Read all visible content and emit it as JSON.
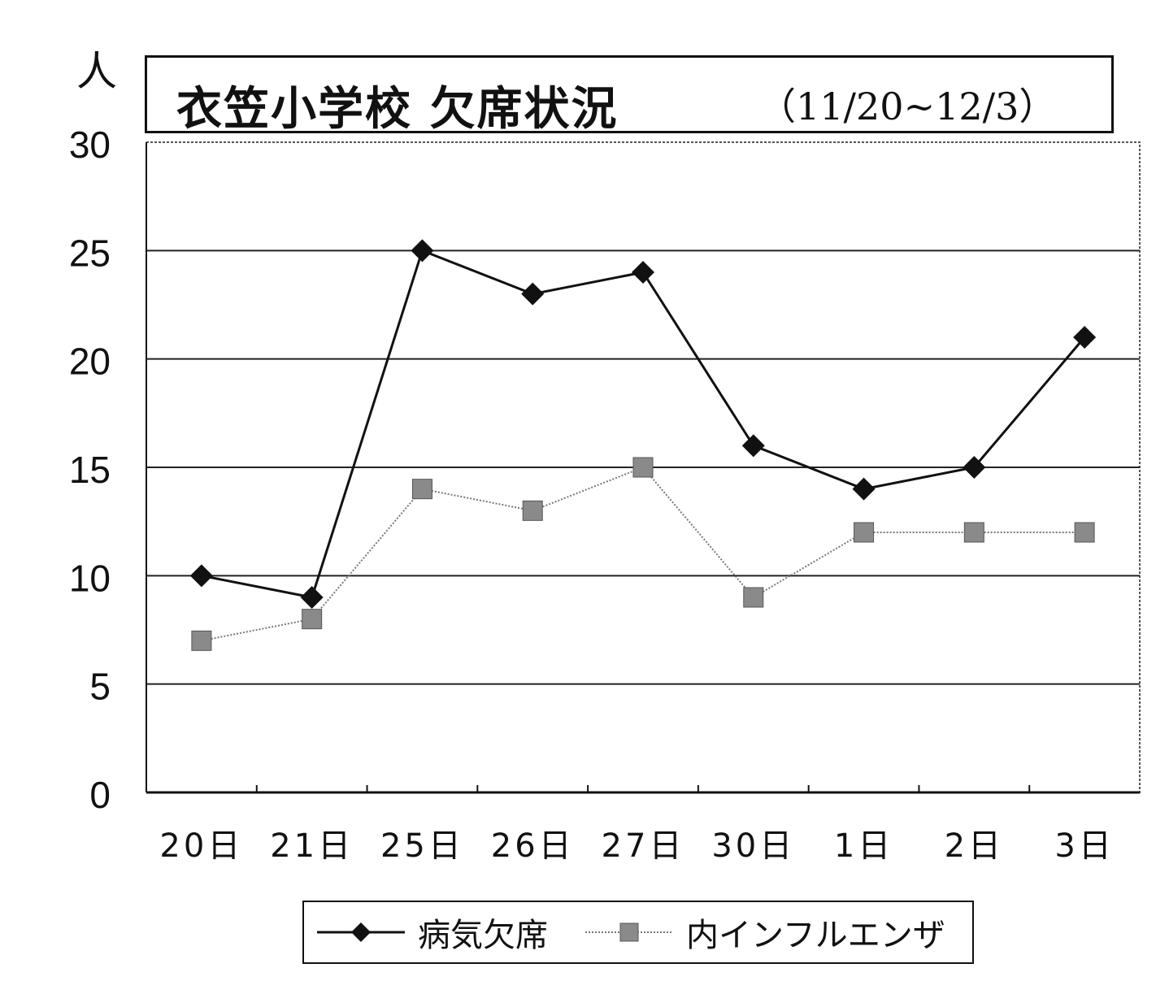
{
  "title": {
    "main": "衣笠小学校 欠席状況",
    "sub": "（11/20~12/3）"
  },
  "chart_data": {
    "type": "line",
    "title": "衣笠小学校 欠席状況 （11/20~12/3）",
    "ylabel": "人",
    "xlabel": "",
    "ylim": [
      0,
      30
    ],
    "yticks": [
      0,
      5,
      10,
      15,
      20,
      25,
      30
    ],
    "grid": true,
    "legend_position": "bottom",
    "categories": [
      "20日",
      "21日",
      "25日",
      "26日",
      "27日",
      "30日",
      "1日",
      "2日",
      "3日"
    ],
    "series": [
      {
        "name": "病気欠席",
        "marker": "diamond",
        "color": "#111111",
        "values": [
          10,
          9,
          25,
          23,
          24,
          16,
          14,
          15,
          21
        ]
      },
      {
        "name": "内インフルエンザ",
        "marker": "square",
        "color": "#777777",
        "values": [
          7,
          8,
          14,
          13,
          15,
          9,
          12,
          12,
          12
        ]
      }
    ]
  }
}
